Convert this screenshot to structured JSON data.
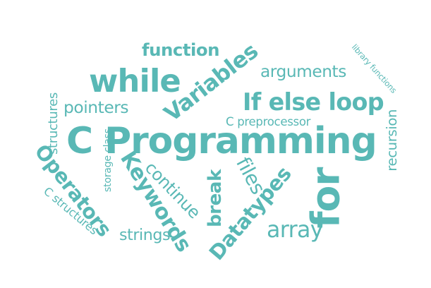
{
  "theme": {
    "word_color": "#59b8b5",
    "background": "#ffffff"
  },
  "words": [
    {
      "text": "C Programming"
    },
    {
      "text": "while"
    },
    {
      "text": "Variables"
    },
    {
      "text": "function"
    },
    {
      "text": "arguments"
    },
    {
      "text": "If else loop"
    },
    {
      "text": "pointers"
    },
    {
      "text": "C preprocessor"
    },
    {
      "text": "structures"
    },
    {
      "text": "storage class"
    },
    {
      "text": "Operators"
    },
    {
      "text": "C structures"
    },
    {
      "text": "Keywords"
    },
    {
      "text": "continue"
    },
    {
      "text": "break"
    },
    {
      "text": "files"
    },
    {
      "text": "Datatypes"
    },
    {
      "text": "for"
    },
    {
      "text": "array"
    },
    {
      "text": "strings"
    },
    {
      "text": "recursion"
    },
    {
      "text": "library functions"
    }
  ]
}
